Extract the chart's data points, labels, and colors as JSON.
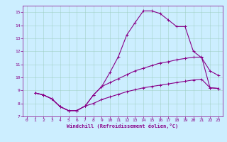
{
  "xlabel": "Windchill (Refroidissement éolien,°C)",
  "background_color": "#cceeff",
  "line_color": "#880088",
  "xlim": [
    -0.5,
    23.5
  ],
  "ylim": [
    7,
    15.5
  ],
  "yticks": [
    7,
    8,
    9,
    10,
    11,
    12,
    13,
    14,
    15
  ],
  "xticks": [
    0,
    1,
    2,
    3,
    4,
    5,
    6,
    7,
    8,
    9,
    10,
    11,
    12,
    13,
    14,
    15,
    16,
    17,
    18,
    19,
    20,
    21,
    22,
    23
  ],
  "line1_x": [
    1,
    2,
    3,
    4,
    5,
    6,
    7,
    8,
    9,
    10,
    11,
    12,
    13,
    14,
    15,
    16,
    17,
    18,
    19,
    20,
    21,
    22,
    23
  ],
  "line1_y": [
    8.8,
    8.65,
    8.35,
    7.75,
    7.45,
    7.45,
    7.8,
    8.65,
    9.3,
    10.4,
    11.6,
    13.25,
    14.2,
    15.1,
    15.1,
    14.9,
    14.4,
    13.9,
    13.9,
    12.0,
    11.5,
    10.5,
    10.15
  ],
  "line2_x": [
    1,
    2,
    3,
    4,
    5,
    6,
    7,
    8,
    9,
    10,
    11,
    12,
    13,
    14,
    15,
    16,
    17,
    18,
    19,
    20,
    21,
    22,
    23
  ],
  "line2_y": [
    8.8,
    8.65,
    8.35,
    7.75,
    7.45,
    7.45,
    7.8,
    8.65,
    9.3,
    9.6,
    9.9,
    10.2,
    10.5,
    10.7,
    10.9,
    11.1,
    11.2,
    11.35,
    11.45,
    11.55,
    11.55,
    9.2,
    9.15
  ],
  "line3_x": [
    1,
    2,
    3,
    4,
    5,
    6,
    7,
    8,
    9,
    10,
    11,
    12,
    13,
    14,
    15,
    16,
    17,
    18,
    19,
    20,
    21,
    22,
    23
  ],
  "line3_y": [
    8.8,
    8.65,
    8.35,
    7.75,
    7.45,
    7.45,
    7.8,
    8.0,
    8.3,
    8.5,
    8.7,
    8.9,
    9.05,
    9.2,
    9.3,
    9.4,
    9.5,
    9.6,
    9.7,
    9.8,
    9.85,
    9.2,
    9.15
  ],
  "tick_fontsize": 4.5,
  "xlabel_fontsize": 5.0,
  "grid_color": "#99ccbb",
  "marker_size": 2.5,
  "line_width": 0.8
}
